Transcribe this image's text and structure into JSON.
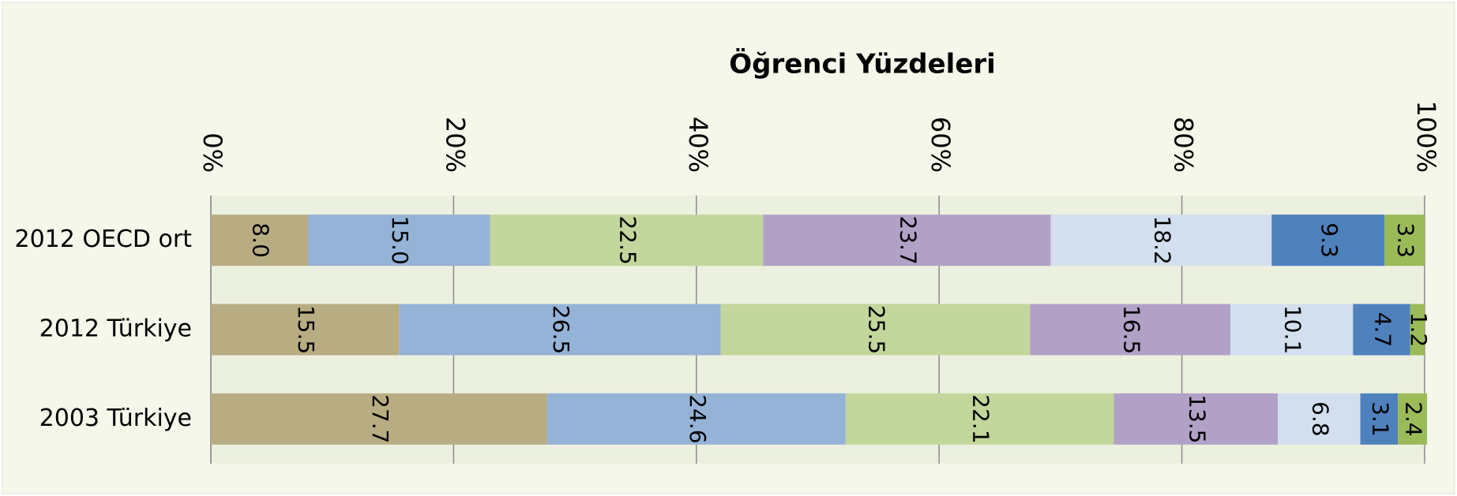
{
  "chart_data": {
    "type": "stacked-bar-horizontal",
    "title": "Öğrenci Yüzdeleri",
    "categories": [
      "2012 OECD ort",
      "2012 Türkiye",
      "2003 Türkiye"
    ],
    "series": [
      {
        "color": "#b8ad82",
        "values": [
          8.0,
          15.5,
          27.7
        ],
        "value_labels": [
          "8.0",
          "15.5",
          "27.7"
        ]
      },
      {
        "color": "#95b3d7",
        "values": [
          15.0,
          26.5,
          24.6
        ],
        "value_labels": [
          "15.0",
          "26.5",
          "24.6"
        ]
      },
      {
        "color": "#c3d69b",
        "values": [
          22.5,
          25.5,
          22.1
        ],
        "value_labels": [
          "22.5",
          "25.5",
          "22.1"
        ]
      },
      {
        "color": "#b2a1c7",
        "values": [
          23.7,
          16.5,
          13.5
        ],
        "value_labels": [
          "23.7",
          "16.5",
          "13.5"
        ]
      },
      {
        "color": "#d3dfee",
        "values": [
          18.2,
          10.1,
          6.8
        ],
        "value_labels": [
          "18.2",
          "10.1",
          "6.8"
        ]
      },
      {
        "color": "#4f81bd",
        "values": [
          9.3,
          4.7,
          3.1
        ],
        "value_labels": [
          "9.3",
          "4.7",
          "3.1"
        ]
      },
      {
        "color": "#9bbb59",
        "values": [
          3.3,
          1.2,
          2.4
        ],
        "value_labels": [
          "3.3",
          "1.2",
          "2.4"
        ]
      }
    ],
    "xlim": [
      0,
      100
    ],
    "xticks": [
      {
        "value": 0,
        "label": "0%"
      },
      {
        "value": 20,
        "label": "20%"
      },
      {
        "value": 40,
        "label": "40%"
      },
      {
        "value": 60,
        "label": "60%"
      },
      {
        "value": 80,
        "label": "80%"
      },
      {
        "value": 100,
        "label": "100%"
      }
    ],
    "grid": true
  }
}
